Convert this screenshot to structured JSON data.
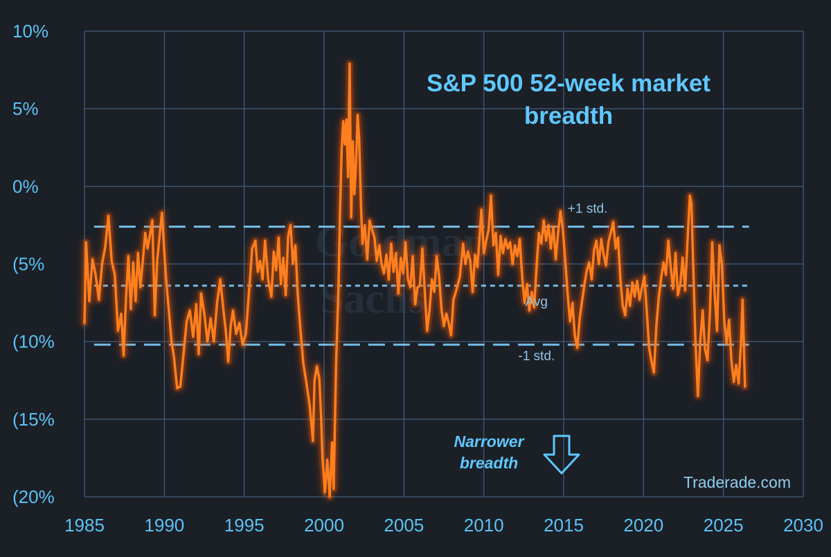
{
  "chart_data": {
    "type": "line",
    "title": "S&P 500 52-week market breadth",
    "title_lines": [
      "S&P 500 52-week market",
      "breadth"
    ],
    "xlabel": "",
    "ylabel": "",
    "xlim": [
      1985,
      2030
    ],
    "ylim": [
      -20,
      10
    ],
    "grid": true,
    "x_ticks": [
      {
        "value": 1985,
        "label": "1985"
      },
      {
        "value": 1990,
        "label": "1990"
      },
      {
        "value": 1995,
        "label": "1995"
      },
      {
        "value": 2000,
        "label": "2000"
      },
      {
        "value": 2005,
        "label": "2005"
      },
      {
        "value": 2010,
        "label": "2010"
      },
      {
        "value": 2015,
        "label": "2015"
      },
      {
        "value": 2020,
        "label": "2020"
      },
      {
        "value": 2025,
        "label": "2025"
      },
      {
        "value": 2030,
        "label": "2030"
      }
    ],
    "y_ticks": [
      {
        "value": 10,
        "label": "10%"
      },
      {
        "value": 5,
        "label": "5%"
      },
      {
        "value": 0,
        "label": "0%"
      },
      {
        "value": -5,
        "label": "(5%"
      },
      {
        "value": -10,
        "label": "(10%"
      },
      {
        "value": -15,
        "label": "(15%"
      },
      {
        "value": -20,
        "label": "(20%"
      }
    ],
    "reference_lines": [
      {
        "name": "plus-1-std",
        "label": "+1 std.",
        "value": -2.6,
        "style": "long-dash",
        "label_x": 2016.5,
        "label_y": -1.7
      },
      {
        "name": "avg",
        "label": "Avg",
        "value": -6.4,
        "style": "short-dash",
        "label_x": 2013.3,
        "label_y": -7.7
      },
      {
        "name": "minus-1-std",
        "label": "-1 std.",
        "value": -10.2,
        "style": "long-dash",
        "label_x": 2013.3,
        "label_y": -11.2
      }
    ],
    "series": [
      {
        "color": "#ff7f1e",
        "points": [
          [
            1985.0,
            -8.8
          ],
          [
            1985.1,
            -3.6
          ],
          [
            1985.3,
            -7.4
          ],
          [
            1985.5,
            -4.7
          ],
          [
            1985.7,
            -5.7
          ],
          [
            1985.9,
            -7.3
          ],
          [
            1986.1,
            -5.0
          ],
          [
            1986.3,
            -3.9
          ],
          [
            1986.5,
            -1.9
          ],
          [
            1986.7,
            -4.8
          ],
          [
            1986.9,
            -5.7
          ],
          [
            1987.1,
            -9.3
          ],
          [
            1987.3,
            -8.2
          ],
          [
            1987.45,
            -10.9
          ],
          [
            1987.6,
            -7.2
          ],
          [
            1987.75,
            -4.5
          ],
          [
            1987.9,
            -7.9
          ],
          [
            1988.05,
            -4.9
          ],
          [
            1988.2,
            -7.4
          ],
          [
            1988.35,
            -4.3
          ],
          [
            1988.5,
            -6.5
          ],
          [
            1988.65,
            -4.8
          ],
          [
            1988.8,
            -3.0
          ],
          [
            1988.95,
            -4.0
          ],
          [
            1989.1,
            -3.1
          ],
          [
            1989.25,
            -2.2
          ],
          [
            1989.4,
            -8.3
          ],
          [
            1989.55,
            -4.8
          ],
          [
            1989.7,
            -3.2
          ],
          [
            1989.85,
            -1.7
          ],
          [
            1990.0,
            -4.3
          ],
          [
            1990.15,
            -6.5
          ],
          [
            1990.3,
            -8.2
          ],
          [
            1990.45,
            -10.0
          ],
          [
            1990.6,
            -11.0
          ],
          [
            1990.8,
            -13.0
          ],
          [
            1991.0,
            -12.9
          ],
          [
            1991.2,
            -10.8
          ],
          [
            1991.4,
            -8.7
          ],
          [
            1991.6,
            -8.0
          ],
          [
            1991.8,
            -9.7
          ],
          [
            1992.0,
            -7.6
          ],
          [
            1992.15,
            -10.8
          ],
          [
            1992.3,
            -6.9
          ],
          [
            1992.5,
            -8.2
          ],
          [
            1992.7,
            -10.0
          ],
          [
            1992.9,
            -8.5
          ],
          [
            1993.1,
            -10.0
          ],
          [
            1993.3,
            -7.5
          ],
          [
            1993.5,
            -6.0
          ],
          [
            1993.7,
            -8.0
          ],
          [
            1993.85,
            -9.3
          ],
          [
            1994.0,
            -11.3
          ],
          [
            1994.15,
            -9.0
          ],
          [
            1994.3,
            -8.0
          ],
          [
            1994.5,
            -9.5
          ],
          [
            1994.7,
            -8.8
          ],
          [
            1994.9,
            -10.2
          ],
          [
            1995.1,
            -9.5
          ],
          [
            1995.3,
            -6.8
          ],
          [
            1995.5,
            -4.0
          ],
          [
            1995.7,
            -3.5
          ],
          [
            1995.85,
            -5.5
          ],
          [
            1996.0,
            -4.8
          ],
          [
            1996.15,
            -6.0
          ],
          [
            1996.3,
            -3.5
          ],
          [
            1996.5,
            -6.0
          ],
          [
            1996.7,
            -7.1
          ],
          [
            1996.85,
            -4.2
          ],
          [
            1997.0,
            -5.4
          ],
          [
            1997.15,
            -3.3
          ],
          [
            1997.3,
            -6.3
          ],
          [
            1997.45,
            -4.6
          ],
          [
            1997.6,
            -7.0
          ],
          [
            1997.75,
            -3.2
          ],
          [
            1997.9,
            -2.5
          ],
          [
            1998.05,
            -5.0
          ],
          [
            1998.2,
            -3.8
          ],
          [
            1998.35,
            -6.9
          ],
          [
            1998.5,
            -9.0
          ],
          [
            1998.7,
            -11.4
          ],
          [
            1998.9,
            -12.7
          ],
          [
            1999.1,
            -14.1
          ],
          [
            1999.3,
            -16.4
          ],
          [
            1999.4,
            -12.5
          ],
          [
            1999.55,
            -11.6
          ],
          [
            1999.7,
            -12.4
          ],
          [
            1999.8,
            -14.5
          ],
          [
            1999.9,
            -17.5
          ],
          [
            2000.05,
            -19.7
          ],
          [
            2000.2,
            -17.6
          ],
          [
            2000.35,
            -20.0
          ],
          [
            2000.5,
            -16.5
          ],
          [
            2000.6,
            -19.5
          ],
          [
            2000.75,
            -11.5
          ],
          [
            2000.9,
            -6.5
          ],
          [
            2001.0,
            -1.5
          ],
          [
            2001.1,
            2.4
          ],
          [
            2001.2,
            4.2
          ],
          [
            2001.3,
            2.7
          ],
          [
            2001.4,
            4.3
          ],
          [
            2001.5,
            0.6
          ],
          [
            2001.6,
            7.9
          ],
          [
            2001.7,
            -2.0
          ],
          [
            2001.8,
            2.9
          ],
          [
            2001.9,
            -0.5
          ],
          [
            2002.0,
            1.4
          ],
          [
            2002.1,
            4.6
          ],
          [
            2002.2,
            3.0
          ],
          [
            2002.3,
            -1.0
          ],
          [
            2002.4,
            -3.7
          ],
          [
            2002.55,
            -2.5
          ],
          [
            2002.7,
            -4.7
          ],
          [
            2002.85,
            -2.2
          ],
          [
            2003.0,
            -2.8
          ],
          [
            2003.15,
            -3.3
          ],
          [
            2003.3,
            -4.8
          ],
          [
            2003.45,
            -3.8
          ],
          [
            2003.6,
            -5.0
          ],
          [
            2003.75,
            -5.6
          ],
          [
            2003.9,
            -4.4
          ],
          [
            2004.05,
            -6.0
          ],
          [
            2004.2,
            -3.7
          ],
          [
            2004.35,
            -5.5
          ],
          [
            2004.5,
            -4.3
          ],
          [
            2004.65,
            -6.9
          ],
          [
            2004.8,
            -4.6
          ],
          [
            2004.95,
            -5.6
          ],
          [
            2005.1,
            -3.6
          ],
          [
            2005.25,
            -6.0
          ],
          [
            2005.4,
            -6.5
          ],
          [
            2005.55,
            -4.5
          ],
          [
            2005.7,
            -7.6
          ],
          [
            2005.85,
            -6.5
          ],
          [
            2006.0,
            -6.4
          ],
          [
            2006.15,
            -4.0
          ],
          [
            2006.3,
            -6.7
          ],
          [
            2006.45,
            -9.3
          ],
          [
            2006.6,
            -8.0
          ],
          [
            2006.75,
            -6.0
          ],
          [
            2006.9,
            -6.8
          ],
          [
            2007.05,
            -4.5
          ],
          [
            2007.2,
            -5.8
          ],
          [
            2007.35,
            -7.9
          ],
          [
            2007.5,
            -9.0
          ],
          [
            2007.65,
            -8.2
          ],
          [
            2007.8,
            -8.8
          ],
          [
            2007.95,
            -9.6
          ],
          [
            2008.1,
            -7.3
          ],
          [
            2008.3,
            -6.6
          ],
          [
            2008.5,
            -5.8
          ],
          [
            2008.7,
            -3.7
          ],
          [
            2008.85,
            -5.0
          ],
          [
            2009.0,
            -4.2
          ],
          [
            2009.15,
            -4.8
          ],
          [
            2009.3,
            -6.8
          ],
          [
            2009.45,
            -4.4
          ],
          [
            2009.6,
            -5.2
          ],
          [
            2009.75,
            -3.0
          ],
          [
            2009.85,
            -1.5
          ],
          [
            2010.0,
            -4.3
          ],
          [
            2010.15,
            -3.5
          ],
          [
            2010.3,
            -2.8
          ],
          [
            2010.45,
            -0.6
          ],
          [
            2010.6,
            -3.8
          ],
          [
            2010.75,
            -3.0
          ],
          [
            2010.9,
            -5.7
          ],
          [
            2011.05,
            -3.2
          ],
          [
            2011.2,
            -4.3
          ],
          [
            2011.35,
            -3.4
          ],
          [
            2011.5,
            -4.0
          ],
          [
            2011.65,
            -3.6
          ],
          [
            2011.8,
            -5.0
          ],
          [
            2011.95,
            -3.8
          ],
          [
            2012.1,
            -4.5
          ],
          [
            2012.25,
            -3.4
          ],
          [
            2012.4,
            -5.8
          ],
          [
            2012.55,
            -7.5
          ],
          [
            2012.7,
            -6.3
          ],
          [
            2012.85,
            -8.0
          ],
          [
            2013.0,
            -6.8
          ],
          [
            2013.15,
            -7.8
          ],
          [
            2013.3,
            -5.2
          ],
          [
            2013.45,
            -3.0
          ],
          [
            2013.6,
            -3.7
          ],
          [
            2013.75,
            -2.2
          ],
          [
            2013.9,
            -3.5
          ],
          [
            2014.05,
            -2.5
          ],
          [
            2014.2,
            -4.0
          ],
          [
            2014.35,
            -2.6
          ],
          [
            2014.5,
            -4.7
          ],
          [
            2014.65,
            -3.0
          ],
          [
            2014.8,
            -1.6
          ],
          [
            2014.95,
            -2.8
          ],
          [
            2015.1,
            -4.8
          ],
          [
            2015.25,
            -7.0
          ],
          [
            2015.4,
            -8.7
          ],
          [
            2015.55,
            -7.5
          ],
          [
            2015.7,
            -9.6
          ],
          [
            2015.85,
            -10.4
          ],
          [
            2016.0,
            -8.5
          ],
          [
            2016.15,
            -7.4
          ],
          [
            2016.3,
            -6.3
          ],
          [
            2016.45,
            -5.4
          ],
          [
            2016.6,
            -4.9
          ],
          [
            2016.75,
            -6.0
          ],
          [
            2016.9,
            -4.1
          ],
          [
            2017.05,
            -3.5
          ],
          [
            2017.2,
            -5.0
          ],
          [
            2017.35,
            -3.4
          ],
          [
            2017.5,
            -4.4
          ],
          [
            2017.65,
            -5.1
          ],
          [
            2017.8,
            -3.6
          ],
          [
            2017.95,
            -3.0
          ],
          [
            2018.1,
            -2.3
          ],
          [
            2018.25,
            -4.0
          ],
          [
            2018.4,
            -3.3
          ],
          [
            2018.55,
            -6.0
          ],
          [
            2018.7,
            -7.7
          ],
          [
            2018.85,
            -8.3
          ],
          [
            2019.0,
            -6.6
          ],
          [
            2019.15,
            -7.7
          ],
          [
            2019.3,
            -6.2
          ],
          [
            2019.45,
            -7.1
          ],
          [
            2019.6,
            -6.1
          ],
          [
            2019.75,
            -7.3
          ],
          [
            2019.9,
            -6.5
          ],
          [
            2020.05,
            -5.8
          ],
          [
            2020.2,
            -8.0
          ],
          [
            2020.35,
            -10.4
          ],
          [
            2020.5,
            -11.3
          ],
          [
            2020.65,
            -12.0
          ],
          [
            2020.8,
            -9.0
          ],
          [
            2020.95,
            -7.2
          ],
          [
            2021.1,
            -5.9
          ],
          [
            2021.25,
            -4.9
          ],
          [
            2021.4,
            -5.7
          ],
          [
            2021.55,
            -3.5
          ],
          [
            2021.7,
            -5.2
          ],
          [
            2021.85,
            -6.6
          ],
          [
            2022.0,
            -4.3
          ],
          [
            2022.15,
            -7.0
          ],
          [
            2022.3,
            -6.3
          ],
          [
            2022.45,
            -4.6
          ],
          [
            2022.6,
            -6.7
          ],
          [
            2022.75,
            -3.5
          ],
          [
            2022.9,
            -0.6
          ],
          [
            2023.0,
            -1.1
          ],
          [
            2023.1,
            -4.8
          ],
          [
            2023.25,
            -10.0
          ],
          [
            2023.4,
            -13.5
          ],
          [
            2023.55,
            -10.0
          ],
          [
            2023.7,
            -8.0
          ],
          [
            2023.85,
            -10.5
          ],
          [
            2024.0,
            -11.2
          ],
          [
            2024.15,
            -8.2
          ],
          [
            2024.3,
            -3.6
          ],
          [
            2024.45,
            -6.9
          ],
          [
            2024.6,
            -9.3
          ],
          [
            2024.75,
            -3.8
          ],
          [
            2024.9,
            -5.0
          ],
          [
            2025.05,
            -8.6
          ],
          [
            2025.2,
            -10.1
          ],
          [
            2025.35,
            -8.6
          ],
          [
            2025.5,
            -11.2
          ],
          [
            2025.65,
            -12.6
          ],
          [
            2025.8,
            -11.5
          ],
          [
            2025.95,
            -12.7
          ],
          [
            2026.1,
            -10.1
          ],
          [
            2026.2,
            -7.3
          ],
          [
            2026.35,
            -12.9
          ]
        ]
      }
    ],
    "annotations": [
      {
        "name": "narrower-breadth",
        "lines": [
          "Narrower",
          "breadth"
        ],
        "icon": "down-arrow-icon",
        "x": 2010.3,
        "y": -16.6
      },
      {
        "name": "source-credit",
        "text": "Traderade.com"
      },
      {
        "name": "watermark",
        "lines": [
          "Goldman",
          "Sachs"
        ]
      }
    ]
  },
  "colors": {
    "background": "#1b1f26",
    "grid": "#3c5572",
    "axis": "#5bc3f5",
    "line": "#ff7f1e",
    "glow": "#ff5a00",
    "reference": "#7fd0ff",
    "title": "#5ec8ff"
  }
}
